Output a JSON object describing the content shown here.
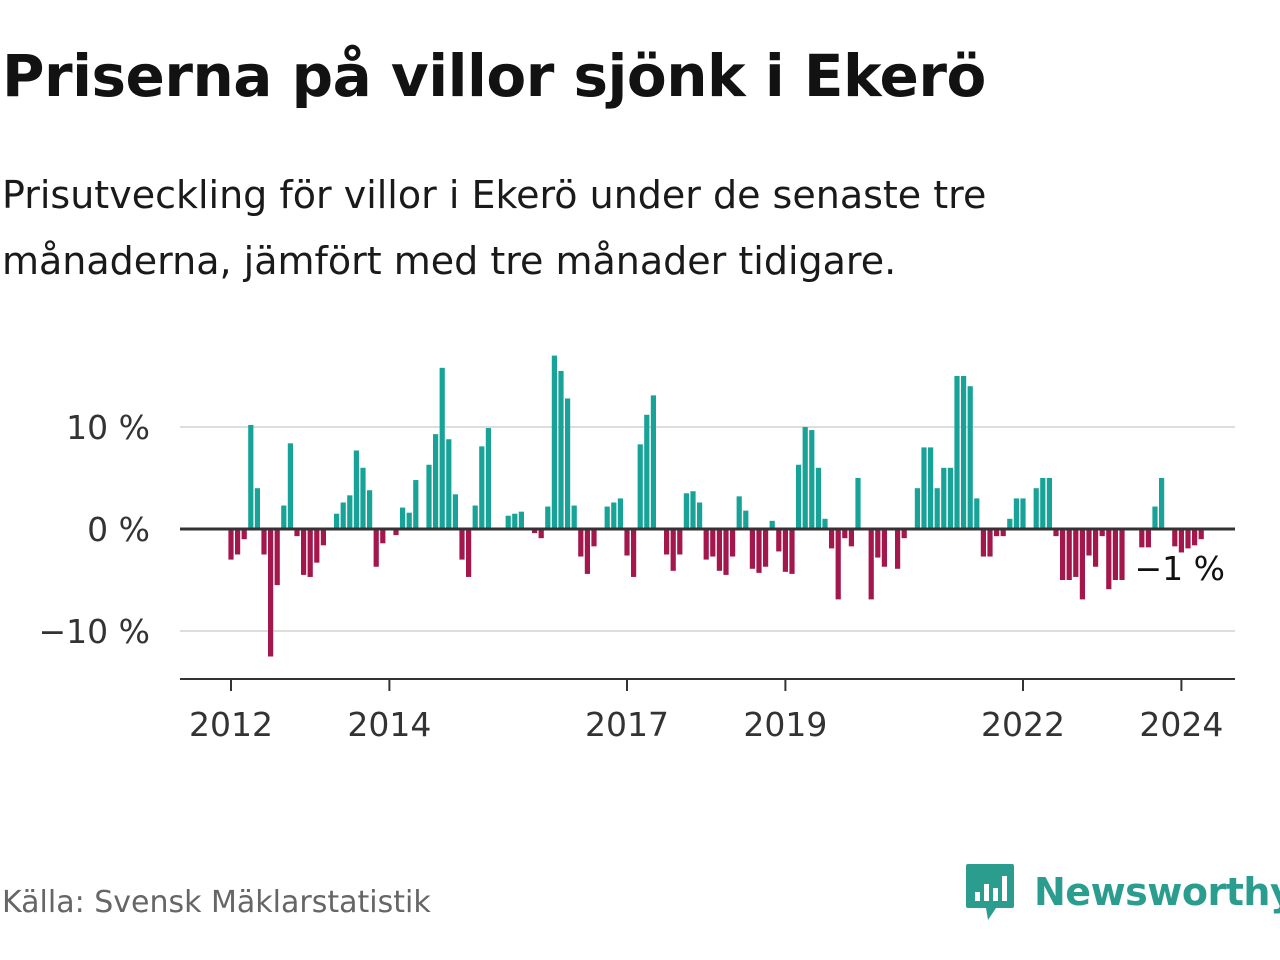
{
  "title": "Priserna på villor sjönk i Ekerö",
  "subtitle": "Prisutveckling för villor i Ekerö under de senaste tre månaderna, jämfört med tre månader tidigare.",
  "source": "Källa: Svensk Mäklarstatistik",
  "brand": {
    "name": "Newsworthy",
    "icon": "newsworthy-logo-icon"
  },
  "colors": {
    "positive": "#17a398",
    "negative": "#a3174c",
    "grid": "#dddddd",
    "axis": "#333333",
    "brand": "#2a9d8f"
  },
  "chart_data": {
    "type": "bar",
    "title": "Priserna på villor sjönk i Ekerö",
    "xlabel": "",
    "ylabel": "",
    "ylim": [
      -15,
      17.5
    ],
    "y_ticks": [
      {
        "value": 10,
        "label": "10 %"
      },
      {
        "value": 0,
        "label": "0 %"
      },
      {
        "value": -10,
        "label": "−10 %"
      }
    ],
    "x_ticks": [
      {
        "index": 0,
        "label": "2012"
      },
      {
        "index": 24,
        "label": "2014"
      },
      {
        "index": 60,
        "label": "2017"
      },
      {
        "index": 84,
        "label": "2019"
      },
      {
        "index": 120,
        "label": "2022"
      },
      {
        "index": 144,
        "label": "2024"
      }
    ],
    "start": "2012-01",
    "end": "2024-01",
    "gridlines": true,
    "last_value_label": "−1 %",
    "values": [
      -3,
      -2.5,
      -1,
      10.2,
      4,
      -2.5,
      -12.5,
      -5.5,
      2.3,
      8.4,
      -0.7,
      -4.5,
      -4.7,
      -3.3,
      -1.6,
      0,
      1.5,
      2.6,
      3.3,
      7.7,
      6,
      3.8,
      -3.7,
      -1.4,
      0,
      -0.6,
      2.1,
      1.6,
      4.8,
      0,
      6.3,
      9.3,
      15.8,
      8.8,
      3.4,
      -3,
      -4.7,
      2.3,
      8.1,
      9.9,
      0,
      0,
      1.3,
      1.5,
      1.7,
      0,
      -0.4,
      -0.9,
      2.2,
      17,
      15.5,
      12.8,
      2.3,
      -2.7,
      -4.4,
      -1.7,
      0,
      2.2,
      2.6,
      3,
      -2.6,
      -4.7,
      8.3,
      11.2,
      13.1,
      0,
      -2.5,
      -4.1,
      -2.5,
      3.5,
      3.7,
      2.6,
      -3,
      -2.7,
      -4.1,
      -4.5,
      -2.7,
      3.2,
      1.8,
      -3.9,
      -4.3,
      -3.7,
      0.8,
      -2.2,
      -4.2,
      -4.4,
      6.3,
      10,
      9.7,
      6,
      1,
      -1.9,
      -6.9,
      -0.9,
      -1.7,
      5,
      0,
      -6.9,
      -2.8,
      -3.7,
      0,
      -3.9,
      -0.9,
      0,
      4,
      8,
      8,
      4,
      6,
      6,
      15,
      15,
      14,
      3,
      -2.7,
      -2.7,
      -0.7,
      -0.7,
      1,
      3,
      3,
      0,
      4,
      5,
      5,
      -0.7,
      -5,
      -5,
      -4.7,
      -6.9,
      -2.6,
      -3.7,
      -0.7,
      -5.9,
      -5,
      -5,
      0,
      0,
      -1.8,
      -1.8,
      2.2,
      5,
      0,
      -1.7,
      -2.3,
      -1.9,
      -1.6,
      -1
    ]
  }
}
